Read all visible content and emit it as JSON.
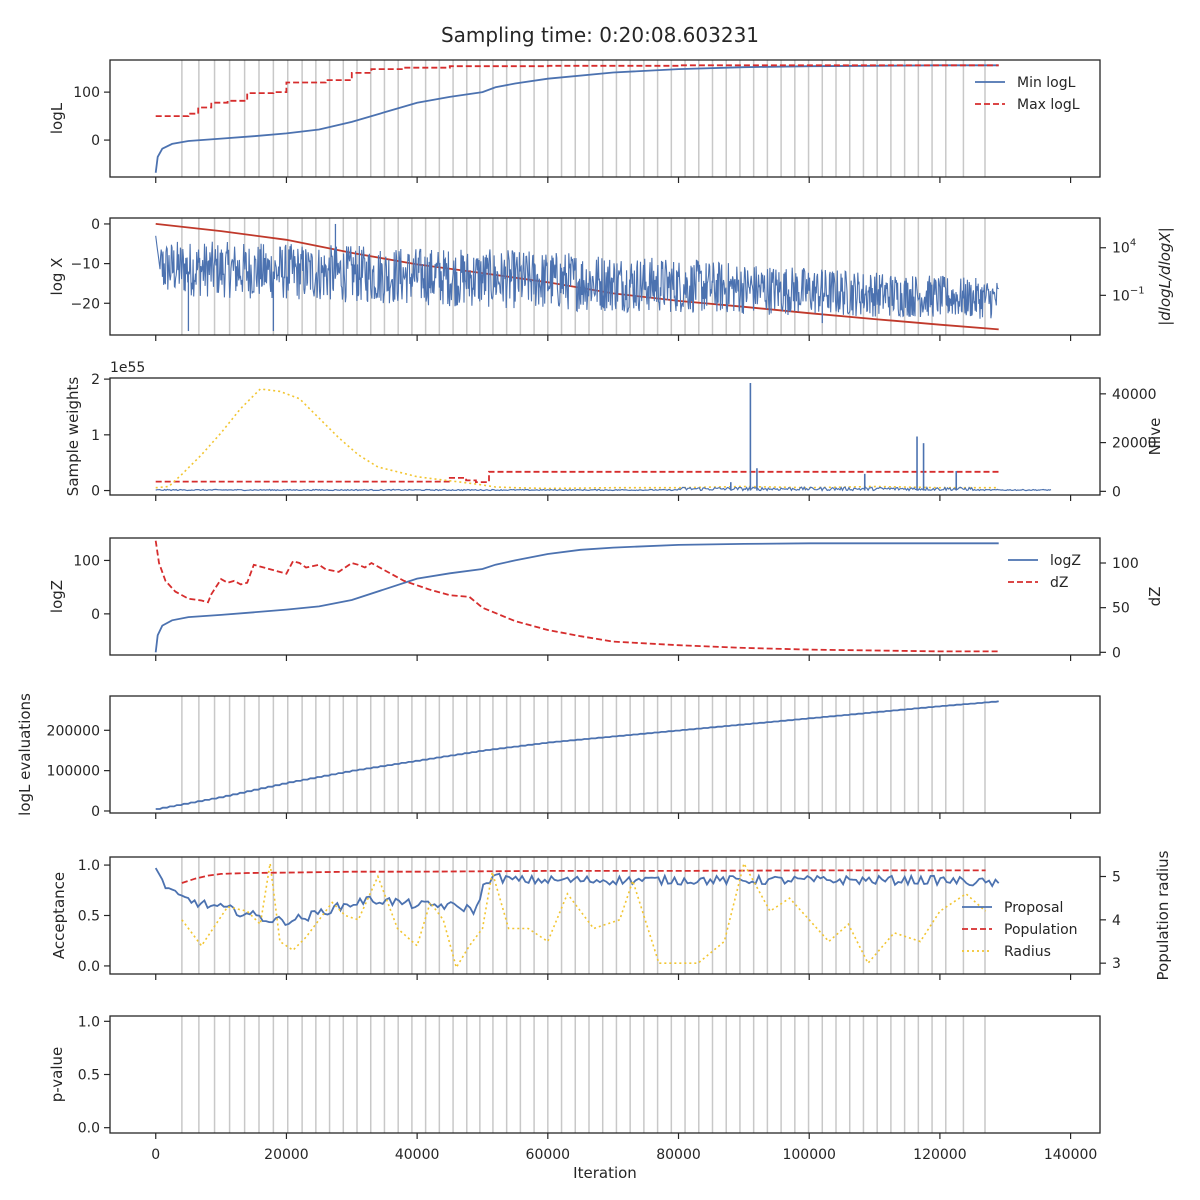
{
  "figure": {
    "title": "Sampling time: 0:20:08.603231",
    "xlabel": "Iteration",
    "x_ticks": [
      0,
      20000,
      40000,
      60000,
      80000,
      100000,
      120000,
      140000
    ],
    "xlim": [
      -7000,
      144500
    ]
  },
  "colors": {
    "blue": "#4c72b0",
    "red": "#d62d2d",
    "redline": "#c0392b",
    "yellow": "#f2c531",
    "vline": "#c8c8c8",
    "axis": "#262626"
  },
  "chart_data": [
    {
      "type": "line",
      "id": "logl",
      "ylabel": "logL",
      "ylim": [
        -77,
        167
      ],
      "y_ticks": [
        0,
        100
      ],
      "vlines": true,
      "legend_position": "upper right",
      "series": [
        {
          "name": "Min logL",
          "style": "solid",
          "color": "blue",
          "x": [
            0,
            300,
            1000,
            2500,
            5000,
            10000,
            15000,
            20000,
            25000,
            30000,
            35000,
            40000,
            45000,
            50000,
            52000,
            55000,
            60000,
            70000,
            80000,
            90000,
            100000,
            110000,
            120000,
            129000
          ],
          "y": [
            -68,
            -35,
            -18,
            -8,
            -2,
            3,
            8,
            14,
            22,
            38,
            58,
            78,
            90,
            100,
            110,
            118,
            128,
            141,
            148,
            152,
            154,
            155,
            156,
            156
          ]
        },
        {
          "name": "Max logL",
          "style": "step-dashed",
          "color": "red",
          "x": [
            0,
            5000,
            6500,
            8500,
            11000,
            14000,
            18000,
            20000,
            26000,
            30000,
            33000,
            38000,
            45000,
            60000,
            80000,
            100000,
            129000
          ],
          "y": [
            50,
            55,
            68,
            78,
            82,
            98,
            100,
            120,
            125,
            140,
            148,
            151,
            154,
            155,
            156,
            156,
            156
          ]
        }
      ]
    },
    {
      "type": "line",
      "id": "logx",
      "ylabel": "log X",
      "ylim": [
        -28,
        1.5
      ],
      "y_ticks": [
        0,
        -10,
        -20
      ],
      "right_ylabel": "|dlogL/dlogX|",
      "right_ticks_log10": [
        4,
        -1
      ],
      "vlines": true,
      "series": [
        {
          "name": "log X",
          "style": "solid",
          "color": "redline",
          "x": [
            0,
            10000,
            20000,
            30000,
            40000,
            50000,
            60000,
            70000,
            80000,
            90000,
            100000,
            110000,
            120000,
            129000
          ],
          "y": [
            0,
            -1.8,
            -4.0,
            -7.3,
            -10.2,
            -12.4,
            -14.7,
            -17.5,
            -19.4,
            -20.9,
            -22.5,
            -24.0,
            -25.4,
            -26.6
          ]
        },
        {
          "name": "|dlogL/dlogX|",
          "style": "noise",
          "color": "blue",
          "x_range": [
            0,
            129000
          ],
          "band_top": [
            -4,
            -7,
            -14
          ],
          "band_bottom": [
            -18,
            -22,
            -24
          ],
          "spikes": [
            {
              "x": 27500,
              "y": 0
            },
            {
              "x": 5000,
              "y": -27
            },
            {
              "x": 18000,
              "y": -27
            },
            {
              "x": 102000,
              "y": -25
            }
          ]
        }
      ]
    },
    {
      "type": "line",
      "id": "weights",
      "ylabel": "Sample weights",
      "offset_label": "1e55",
      "ylim": [
        -0.08,
        2.02
      ],
      "y_ticks": [
        0,
        1,
        2
      ],
      "right_ylabel": "Nlive",
      "right_ylim": [
        -1500,
        46500
      ],
      "right_ticks": [
        0,
        20000,
        40000
      ],
      "vlines": false,
      "series": [
        {
          "name": "Nlive",
          "style": "step-dashed",
          "color": "red",
          "axis": "right",
          "x": [
            0,
            44000,
            45000,
            47500,
            49000,
            50500,
            51000,
            129000
          ],
          "y": [
            4000,
            4000,
            5500,
            4500,
            3800,
            3800,
            8000,
            8000
          ]
        },
        {
          "name": "Population",
          "style": "dotted",
          "color": "yellow",
          "axis": "right",
          "x": [
            0,
            2000,
            4000,
            7000,
            10000,
            13000,
            16000,
            19000,
            22000,
            25000,
            28000,
            31000,
            34000,
            37000,
            40000,
            43000,
            46000,
            49000,
            52000,
            55000,
            60000,
            70000,
            80000,
            90000,
            100000,
            110000,
            120000,
            129000
          ],
          "y": [
            1500,
            2000,
            7000,
            15000,
            24000,
            34000,
            42000,
            41000,
            38000,
            30000,
            22000,
            15000,
            10000,
            8000,
            6000,
            5000,
            4000,
            3000,
            1800,
            1500,
            1200,
            1500,
            1500,
            2000,
            1500,
            2000,
            1500,
            1500
          ]
        },
        {
          "name": "Sample weights",
          "style": "noise-positive",
          "color": "blue",
          "axis": "left",
          "x_range": [
            0,
            137000
          ],
          "spikes": [
            {
              "x": 91000,
              "y": 1.93
            },
            {
              "x": 116500,
              "y": 0.97
            },
            {
              "x": 117500,
              "y": 0.85
            },
            {
              "x": 92000,
              "y": 0.4
            },
            {
              "x": 108500,
              "y": 0.3
            },
            {
              "x": 122500,
              "y": 0.35
            },
            {
              "x": 88000,
              "y": 0.15
            }
          ]
        }
      ]
    },
    {
      "type": "line",
      "id": "logz",
      "ylabel": "logZ",
      "ylim": [
        -77,
        142
      ],
      "y_ticks": [
        0,
        100
      ],
      "right_ylabel": "dZ",
      "right_ylim": [
        -3,
        128
      ],
      "right_ticks": [
        0,
        50,
        100
      ],
      "vlines": false,
      "legend_position": "upper right",
      "series": [
        {
          "name": "logZ",
          "style": "solid",
          "color": "blue",
          "axis": "left",
          "x": [
            0,
            300,
            1000,
            2500,
            5000,
            10000,
            15000,
            20000,
            25000,
            30000,
            35000,
            40000,
            45000,
            50000,
            52000,
            55000,
            60000,
            65000,
            70000,
            80000,
            90000,
            100000,
            110000,
            120000,
            129000
          ],
          "y": [
            -72,
            -40,
            -22,
            -12,
            -6,
            -2,
            3,
            8,
            14,
            26,
            46,
            66,
            76,
            84,
            92,
            100,
            112,
            120,
            124,
            129,
            131,
            132,
            132,
            132,
            132
          ]
        },
        {
          "name": "dZ",
          "style": "dashed",
          "color": "red",
          "axis": "right",
          "x": [
            0,
            500,
            1500,
            3000,
            5000,
            7000,
            8000,
            8500,
            10000,
            11000,
            12000,
            13000,
            14000,
            15000,
            20000,
            21000,
            22000,
            23000,
            25000,
            26000,
            28000,
            30000,
            31000,
            32000,
            33000,
            35000,
            38000,
            42000,
            45000,
            48000,
            50000,
            55000,
            60000,
            65000,
            70000,
            80000,
            90000,
            100000,
            110000,
            120000,
            129000
          ],
          "y": [
            125,
            100,
            80,
            68,
            60,
            58,
            56,
            65,
            82,
            78,
            80,
            76,
            78,
            98,
            88,
            102,
            100,
            95,
            98,
            93,
            90,
            100,
            98,
            95,
            100,
            92,
            80,
            70,
            64,
            62,
            50,
            35,
            25,
            18,
            12,
            8,
            5,
            3,
            2,
            1,
            1
          ]
        }
      ]
    },
    {
      "type": "line",
      "id": "evals",
      "ylabel": "logL evaluations",
      "ylim": [
        -5000,
        285000
      ],
      "y_ticks": [
        0,
        100000,
        200000
      ],
      "vlines": true,
      "series": [
        {
          "name": "logL evaluations",
          "style": "staircase",
          "color": "blue",
          "x": [
            0,
            10000,
            20000,
            30000,
            40000,
            50000,
            60000,
            70000,
            80000,
            90000,
            100000,
            110000,
            120000,
            129000
          ],
          "y": [
            5000,
            35000,
            70000,
            100000,
            125000,
            150000,
            170000,
            185000,
            200000,
            215000,
            230000,
            245000,
            260000,
            272000
          ]
        }
      ]
    },
    {
      "type": "line",
      "id": "acceptance",
      "ylabel": "Acceptance",
      "ylim": [
        -0.08,
        1.08
      ],
      "y_ticks": [
        0.0,
        0.5,
        1.0
      ],
      "right_ylabel": "Population radius",
      "right_ylim": [
        2.75,
        5.45
      ],
      "right_ticks": [
        3,
        4,
        5
      ],
      "vlines": true,
      "legend_position": "center right",
      "series": [
        {
          "name": "Proposal",
          "style": "jitter",
          "color": "blue",
          "axis": "left",
          "x": [
            0,
            1500,
            3000,
            5000,
            8000,
            12000,
            15000,
            18000,
            20000,
            23000,
            26000,
            29000,
            32000,
            35000,
            38000,
            41000,
            44000,
            47000,
            49000,
            50500,
            52000,
            55000,
            60000,
            70000,
            80000,
            90000,
            100000,
            110000,
            120000,
            129000
          ],
          "y": [
            0.97,
            0.8,
            0.7,
            0.65,
            0.6,
            0.55,
            0.5,
            0.45,
            0.45,
            0.48,
            0.55,
            0.6,
            0.65,
            0.65,
            0.62,
            0.6,
            0.6,
            0.58,
            0.55,
            0.85,
            0.88,
            0.85,
            0.85,
            0.85,
            0.85,
            0.85,
            0.85,
            0.85,
            0.85,
            0.82
          ]
        },
        {
          "name": "Population",
          "style": "dashed",
          "color": "red",
          "axis": "right",
          "x": [
            4000,
            6000,
            8000,
            10000,
            14000,
            20000,
            30000,
            40000,
            50000,
            60000,
            80000,
            100000,
            120000,
            127000
          ],
          "y": [
            4.85,
            4.95,
            5.02,
            5.06,
            5.08,
            5.09,
            5.11,
            5.11,
            5.12,
            5.13,
            5.13,
            5.14,
            5.14,
            5.14
          ]
        },
        {
          "name": "Radius",
          "style": "dotted",
          "color": "yellow",
          "axis": "right",
          "x": [
            4000,
            7000,
            11000,
            14000,
            16000,
            17500,
            19000,
            21000,
            23000,
            25000,
            27000,
            29000,
            31000,
            34000,
            37000,
            40000,
            42000,
            44000,
            46000,
            48000,
            50000,
            51500,
            54000,
            57000,
            60000,
            63000,
            67000,
            71000,
            73000,
            77000,
            80000,
            83000,
            87000,
            90000,
            94000,
            97000,
            100000,
            103000,
            106000,
            109000,
            113000,
            117000,
            120000,
            124000,
            127000
          ],
          "y": [
            4.0,
            3.4,
            4.3,
            4.2,
            3.9,
            5.3,
            3.5,
            3.3,
            3.6,
            4.0,
            4.4,
            4.1,
            4.0,
            5.0,
            3.8,
            3.4,
            4.4,
            4.0,
            2.9,
            3.4,
            3.8,
            5.1,
            3.8,
            3.8,
            3.5,
            4.6,
            3.8,
            4.0,
            4.9,
            3.0,
            3.0,
            3.0,
            3.5,
            5.3,
            4.2,
            4.5,
            4.0,
            3.5,
            3.9,
            3.0,
            3.7,
            3.5,
            4.2,
            4.6,
            4.2
          ]
        }
      ]
    },
    {
      "type": "line",
      "id": "pvalue",
      "ylabel": "p-value",
      "ylim": [
        -0.05,
        1.05
      ],
      "y_ticks": [
        0.0,
        0.5,
        1.0
      ],
      "vlines": true,
      "series": []
    }
  ],
  "vlines_x": [
    4000,
    6600,
    9000,
    11300,
    13600,
    15800,
    18000,
    20200,
    22400,
    24500,
    26600,
    28700,
    30800,
    32900,
    35000,
    37100,
    39200,
    41300,
    43400,
    45500,
    47600,
    49600,
    51600,
    53700,
    55800,
    57900,
    60000,
    62100,
    64200,
    66300,
    68400,
    70500,
    72600,
    74700,
    76800,
    78900,
    81000,
    83100,
    85200,
    87300,
    89400,
    91500,
    93600,
    95700,
    97800,
    99900,
    102000,
    104100,
    106200,
    108300,
    110400,
    112500,
    114600,
    116700,
    118800,
    120900,
    123600,
    126900
  ]
}
